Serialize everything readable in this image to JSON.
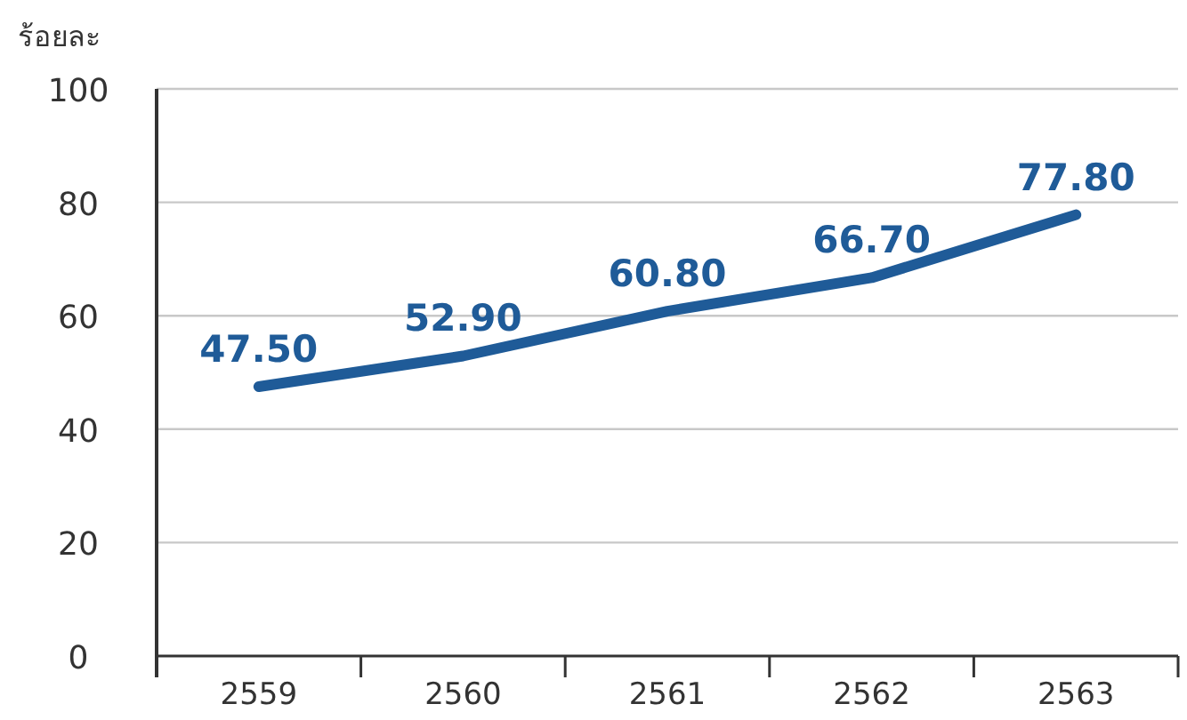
{
  "chart_data": {
    "type": "line",
    "ylabel": "ร้อยละ",
    "categories": [
      "2559",
      "2560",
      "2561",
      "2562",
      "2563"
    ],
    "series": [
      {
        "color": "#1f5b98",
        "values": [
          47.5,
          52.9,
          60.8,
          66.7,
          77.8
        ],
        "value_labels": [
          "47.50",
          "52.90",
          "60.80",
          "66.70",
          "77.80"
        ]
      }
    ],
    "ylim": [
      0,
      100
    ],
    "yticks": [
      0,
      20,
      40,
      60,
      80,
      100
    ],
    "grid": "y",
    "marker": "none",
    "line_style": "solid"
  }
}
